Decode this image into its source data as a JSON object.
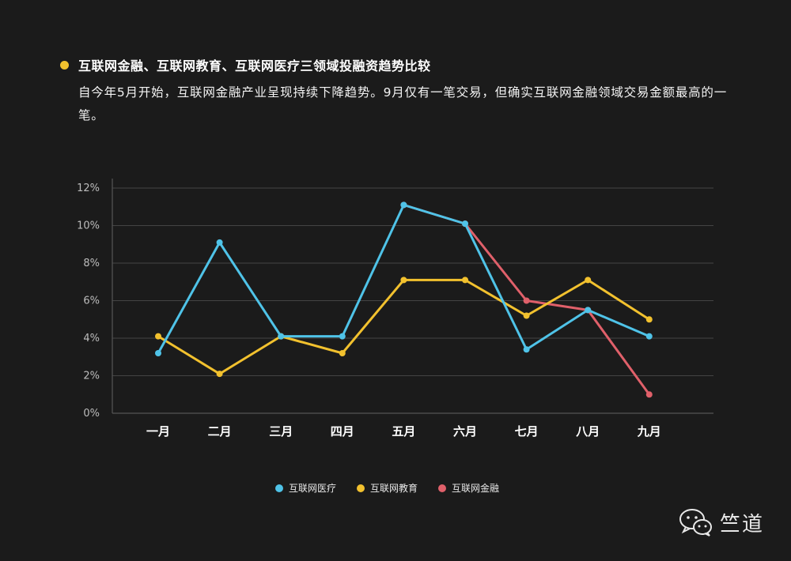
{
  "header": {
    "title": "互联网金融、互联网教育、互联网医疗三领域投融资趋势比较",
    "description": "自今年5月开始，互联网金融产业呈现持续下降趋势。9月仅有一笔交易，但确实互联网金融领域交易金额最高的一笔。"
  },
  "colors": {
    "bullet": "#f2c12e",
    "background": "#1b1b1b"
  },
  "chart_data": {
    "type": "line",
    "categories": [
      "一月",
      "二月",
      "三月",
      "四月",
      "五月",
      "六月",
      "七月",
      "八月",
      "九月"
    ],
    "y_tick_labels": [
      "0%",
      "2%",
      "4%",
      "6%",
      "8%",
      "10%",
      "12%"
    ],
    "ylim": [
      0,
      12
    ],
    "grid": true,
    "series": [
      {
        "name": "互联网医疗",
        "color": "#4fc3e8",
        "values": [
          3.2,
          9.1,
          4.1,
          4.1,
          11.1,
          10.1,
          3.4,
          5.5,
          4.1
        ]
      },
      {
        "name": "互联网教育",
        "color": "#f2c12e",
        "values": [
          4.1,
          2.1,
          4.1,
          3.2,
          7.1,
          7.1,
          5.2,
          7.1,
          5.0
        ]
      },
      {
        "name": "互联网金融",
        "color": "#e0606a",
        "values": [
          null,
          null,
          null,
          null,
          11.1,
          10.1,
          6.0,
          5.5,
          1.0
        ]
      }
    ]
  },
  "watermark": {
    "text": "竺道",
    "icon": "wechat-icon"
  }
}
